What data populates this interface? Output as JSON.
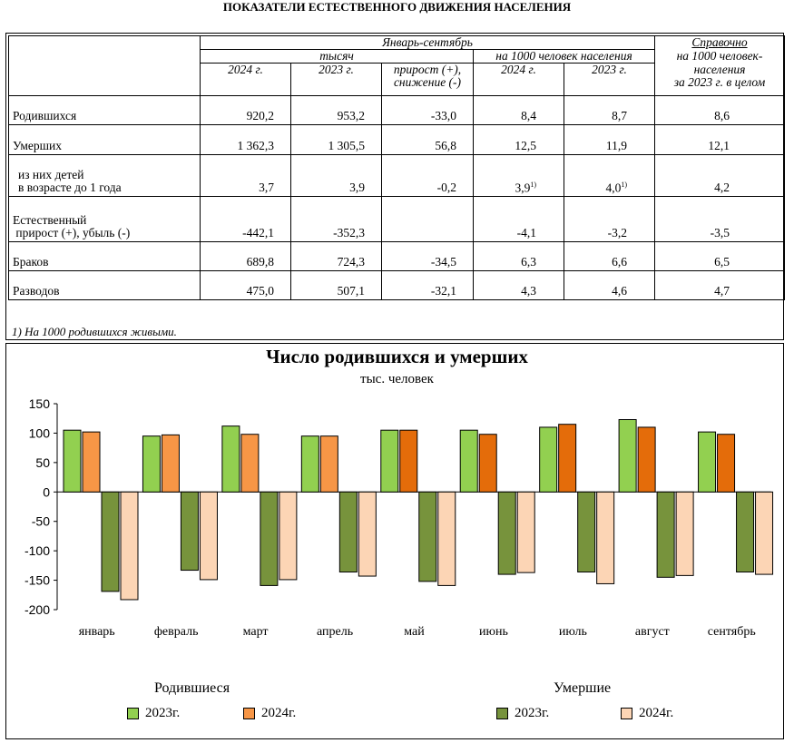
{
  "page_title": "ПОКАЗАТЕЛИ ЕСТЕСТВЕННОГО ДВИЖЕНИЯ НАСЕЛЕНИЯ",
  "table": {
    "header": {
      "period": "Январь-сентябрь",
      "thousands": "тысяч",
      "per1000": "на 1000 человек населения",
      "reference_line1": "Справочно",
      "reference_line2": "на 1000 человек-",
      "reference_line3": "населения",
      "reference_line4": "за 2023 г. в целом",
      "y2024": "2024 г.",
      "y2023": "2023 г.",
      "change_line1": "прирост (+),",
      "change_line2": "снижение (-)",
      "y2024b": "2024 г.",
      "y2023b": "2023 г."
    },
    "rows": [
      {
        "label": "Родившихся",
        "label2": "",
        "v2024": "920,2",
        "v2023": "953,2",
        "change": "-33,0",
        "r2024": "8,4",
        "r2023": "8,7",
        "ref": "8,6"
      },
      {
        "label": "Умерших",
        "label2": "",
        "v2024": "1 362,3",
        "v2023": "1 305,5",
        "change": "56,8",
        "r2024": "12,5",
        "r2023": "11,9",
        "ref": "12,1"
      },
      {
        "label": "из них детей",
        "label2": "в возрасте до 1 года",
        "v2024": "3,7",
        "v2023": "3,9",
        "change": "-0,2",
        "r2024": "3,9",
        "r2023": "4,0",
        "ref": "4,2"
      },
      {
        "label": "Естественный",
        "label2": "прирост (+), убыль (-)",
        "v2024": "-442,1",
        "v2023": "-352,3",
        "change": "",
        "r2024": "-4,1",
        "r2023": "-3,2",
        "ref": "-3,5"
      },
      {
        "label": "Браков",
        "label2": "",
        "v2024": "689,8",
        "v2023": "724,3",
        "change": "-34,5",
        "r2024": "6,3",
        "r2023": "6,6",
        "ref": "6,5"
      },
      {
        "label": "Разводов",
        "label2": "",
        "v2024": "475,0",
        "v2023": "507,1",
        "change": "-32,1",
        "r2024": "4,3",
        "r2023": "4,6",
        "ref": "4,7"
      }
    ],
    "footnote_mark": "1)",
    "footnote": "1) На 1000 родившихся живыми."
  },
  "chart_data": {
    "type": "bar",
    "title": "Число родившихся и умерших",
    "subtitle": "тыс. человек",
    "categories": [
      "январь",
      "февраль",
      "март",
      "апрель",
      "май",
      "июнь",
      "июль",
      "август",
      "сентябрь"
    ],
    "ylim": [
      -200,
      150
    ],
    "yticks": [
      150,
      100,
      50,
      0,
      -50,
      -100,
      -150,
      -200
    ],
    "grid": false,
    "legend_groups": [
      "Родившиеся",
      "Умершие"
    ],
    "series": [
      {
        "name": "2023г.",
        "group": "Родившиеся",
        "color": "#92d050",
        "values": [
          105,
          95,
          112,
          95,
          105,
          105,
          110,
          123,
          102
        ]
      },
      {
        "name": "2024г.",
        "group": "Родившиеся",
        "color": "#f79646",
        "values": [
          102,
          97,
          98,
          95,
          105,
          98,
          115,
          110,
          98
        ]
      },
      {
        "name": "2023г.",
        "group": "Умершие",
        "color": "#77933c",
        "values": [
          -169,
          -133,
          -159,
          -136,
          -152,
          -140,
          -136,
          -145,
          -136
        ]
      },
      {
        "name": "2024г.",
        "group": "Умершие",
        "color": "#fcd5b5",
        "values": [
          -183,
          -149,
          -149,
          -143,
          -159,
          -137,
          -156,
          -142,
          -140
        ]
      }
    ],
    "colors": {
      "births_2024_varied": [
        "#f79646",
        "#f79646",
        "#f79646",
        "#f79646",
        "#e46c0a",
        "#e46c0a",
        "#e46c0a",
        "#e46c0a",
        "#e46c0a"
      ]
    }
  }
}
